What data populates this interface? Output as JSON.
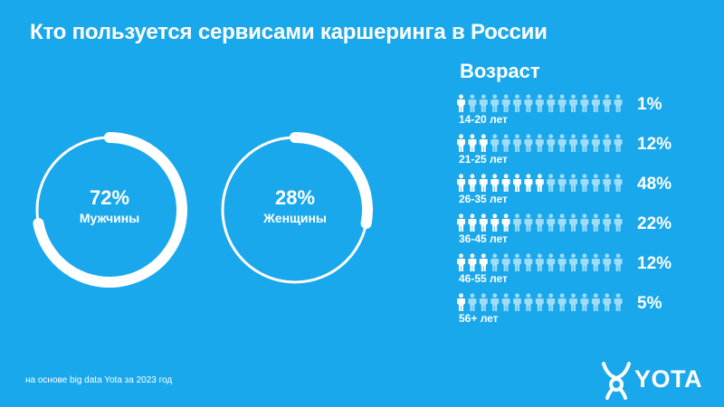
{
  "title": "Кто пользуется сервисами каршеринга в России",
  "chart_data": [
    {
      "type": "pie",
      "categories": [
        "Мужчины",
        "Женщины"
      ],
      "values": [
        72,
        28
      ],
      "labels": [
        "72%",
        "28%"
      ],
      "style": "two rings, each showing its share as a thick arc over a thin full circle"
    },
    {
      "type": "bar",
      "title": "Возраст",
      "style": "pictograph rows of 15 person icons, filled icons proportional to share",
      "categories": [
        "14-20 лет",
        "21-25 лет",
        "26-35 лет",
        "36-45 лет",
        "46-55 лет",
        "56+ лет"
      ],
      "values": [
        1,
        12,
        48,
        22,
        12,
        5
      ],
      "value_labels": [
        "1%",
        "12%",
        "48%",
        "22%",
        "12%",
        "5%"
      ],
      "icons_per_row": 15,
      "filled_icons": [
        1,
        3,
        8,
        5,
        3,
        1
      ]
    }
  ],
  "footnote": "на основе big data Yota за 2023 год",
  "logo": {
    "text": "YOTA",
    "icon": "yota-logo-icon"
  },
  "colors": {
    "background": "#1aa8ec",
    "filled": "#ffffff",
    "empty": "#9fdcf7"
  }
}
